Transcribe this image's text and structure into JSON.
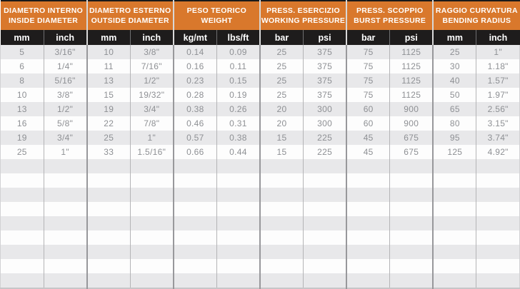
{
  "table": {
    "column_groups": [
      {
        "key": "inside-diameter",
        "title_it": "DIAMETRO INTERNO",
        "title_en": "INSIDE DIAMETER",
        "units": [
          "mm",
          "inch"
        ]
      },
      {
        "key": "outside-diameter",
        "title_it": "DIAMETRO ESTERNO",
        "title_en": "OUTSIDE DIAMETER",
        "units": [
          "mm",
          "inch"
        ]
      },
      {
        "key": "weight",
        "title_it": "PESO TEORICO",
        "title_en": "WEIGHT",
        "units": [
          "kg/mt",
          "lbs/ft"
        ]
      },
      {
        "key": "working-pressure",
        "title_it": "PRESS. ESERCIZIO",
        "title_en": "WORKING PRESSURE",
        "units": [
          "bar",
          "psi"
        ]
      },
      {
        "key": "burst-pressure",
        "title_it": "PRESS. SCOPPIO",
        "title_en": "BURST PRESSURE",
        "units": [
          "bar",
          "psi"
        ]
      },
      {
        "key": "bending-radius",
        "title_it": "RAGGIO CURVATURA",
        "title_en": "BENDING RADIUS",
        "units": [
          "mm",
          "inch"
        ]
      }
    ],
    "rows": [
      [
        "5",
        "3/16\"",
        "10",
        "3/8\"",
        "0.14",
        "0.09",
        "25",
        "375",
        "75",
        "1125",
        "25",
        "1\""
      ],
      [
        "6",
        "1/4\"",
        "11",
        "7/16\"",
        "0.16",
        "0.11",
        "25",
        "375",
        "75",
        "1125",
        "30",
        "1.18\""
      ],
      [
        "8",
        "5/16\"",
        "13",
        "1/2\"",
        "0.23",
        "0.15",
        "25",
        "375",
        "75",
        "1125",
        "40",
        "1.57\""
      ],
      [
        "10",
        "3/8\"",
        "15",
        "19/32\"",
        "0.28",
        "0.19",
        "25",
        "375",
        "75",
        "1125",
        "50",
        "1.97\""
      ],
      [
        "13",
        "1/2\"",
        "19",
        "3/4\"",
        "0.38",
        "0.26",
        "20",
        "300",
        "60",
        "900",
        "65",
        "2.56\""
      ],
      [
        "16",
        "5/8\"",
        "22",
        "7/8\"",
        "0.46",
        "0.31",
        "20",
        "300",
        "60",
        "900",
        "80",
        "3.15\""
      ],
      [
        "19",
        "3/4\"",
        "25",
        "1\"",
        "0.57",
        "0.38",
        "15",
        "225",
        "45",
        "675",
        "95",
        "3.74\""
      ],
      [
        "25",
        "1\"",
        "33",
        "1.5/16\"",
        "0.66",
        "0.44",
        "15",
        "225",
        "45",
        "675",
        "125",
        "4.92\""
      ]
    ],
    "empty_row_count": 9
  },
  "colors": {
    "accent": "#D9782C",
    "header_black": "#1E1C1C",
    "stripe": "#E8E8EA",
    "row_white": "#FDFDFD",
    "data_text": "#8E9094",
    "grid_inner": "#B4B4B6",
    "grid_group": "#98989B",
    "header_divider": "#D8D8D8",
    "top_border": "#1A1A1A",
    "bottom_border": "#C6C6C8"
  }
}
